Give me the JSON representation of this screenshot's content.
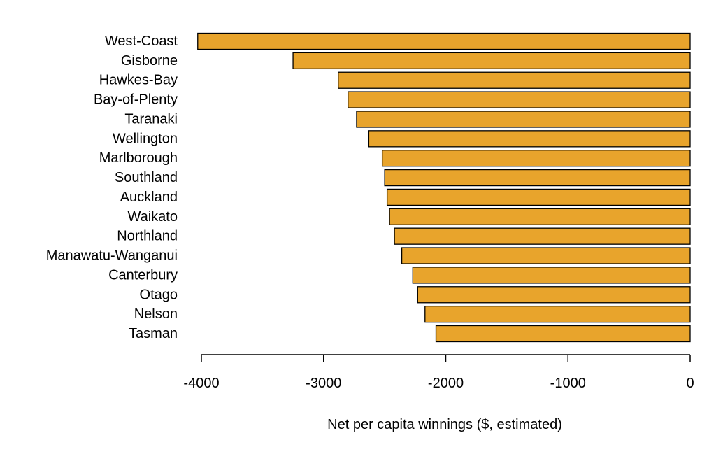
{
  "chart_data": {
    "type": "bar",
    "orientation": "horizontal",
    "categories": [
      "West-Coast",
      "Gisborne",
      "Hawkes-Bay",
      "Bay-of-Plenty",
      "Taranaki",
      "Wellington",
      "Marlborough",
      "Southland",
      "Auckland",
      "Waikato",
      "Northland",
      "Manawatu-Wanganui",
      "Canterbury",
      "Otago",
      "Nelson",
      "Tasman"
    ],
    "values": [
      -4030,
      -3250,
      -2880,
      -2800,
      -2730,
      -2630,
      -2520,
      -2500,
      -2480,
      -2460,
      -2420,
      -2360,
      -2270,
      -2230,
      -2170,
      -2080
    ],
    "title": "",
    "xlabel": "Net per capita winnings ($, estimated)",
    "ylabel": "",
    "xlim": [
      -4000,
      0
    ],
    "xticks": [
      -4000,
      -3000,
      -2000,
      -1000,
      0
    ],
    "xtick_labels": [
      "-4000",
      "-3000",
      "-2000",
      "-1000",
      "0"
    ],
    "grid": false,
    "legend": "none",
    "colors": {
      "bar_fill": "#E8A42C",
      "bar_stroke": "#000000",
      "axis": "#000000",
      "text": "#000000"
    }
  }
}
